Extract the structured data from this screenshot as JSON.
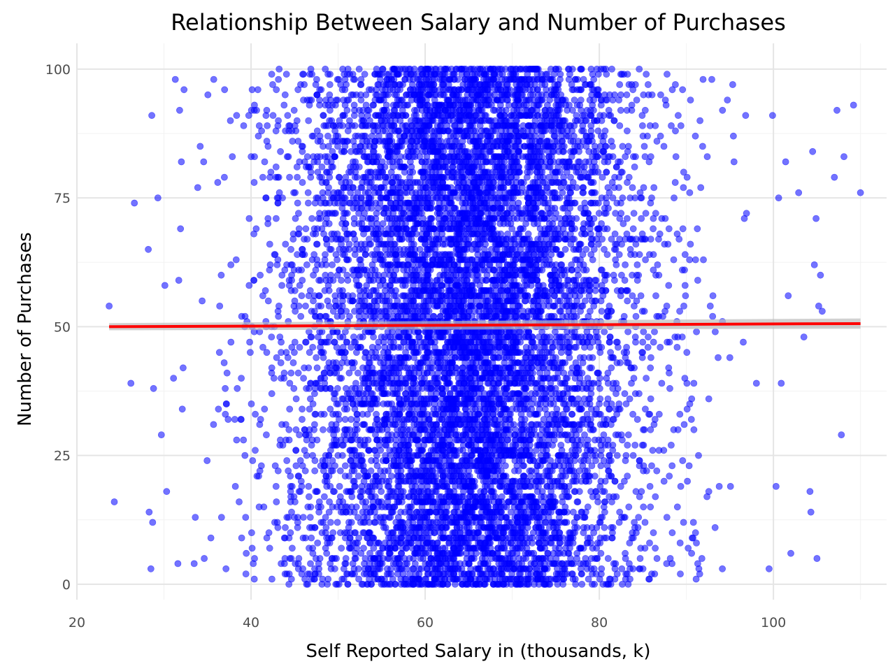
{
  "chart_data": {
    "type": "scatter",
    "title": "Relationship Between Salary and Number of Purchases",
    "xlabel": "Self Reported Salary in (thousands, k)",
    "ylabel": "Number of Purchases",
    "xlim": [
      20,
      113
    ],
    "ylim": [
      -3,
      105
    ],
    "x_ticks": [
      20,
      40,
      60,
      80,
      100
    ],
    "y_ticks": [
      0,
      25,
      50,
      75,
      100
    ],
    "x_tick_labels": [
      "20",
      "40",
      "60",
      "80",
      "100"
    ],
    "y_tick_labels": [
      "0",
      "25",
      "50",
      "75",
      "100"
    ],
    "grid": true,
    "legend": "none",
    "series": [
      {
        "kind": "points",
        "color": "#0000ff",
        "opacity": 0.55,
        "x_distribution": {
          "type": "normal",
          "mean": 65,
          "sd": 10
        },
        "y_distribution": {
          "type": "uniform_integer",
          "min": 0,
          "max": 100
        },
        "approx_count": 10000,
        "outliers": [
          [
            23.7,
            54
          ],
          [
            24.3,
            16
          ],
          [
            26.2,
            39
          ],
          [
            26.6,
            74
          ],
          [
            28.2,
            65
          ],
          [
            28.3,
            14
          ],
          [
            28.5,
            3
          ],
          [
            28.6,
            91
          ],
          [
            28.7,
            12
          ],
          [
            28.8,
            38
          ],
          [
            29.3,
            75
          ],
          [
            29.7,
            29
          ],
          [
            30.1,
            58
          ],
          [
            30.3,
            18
          ],
          [
            31.1,
            40
          ],
          [
            31.3,
            98
          ],
          [
            31.6,
            4
          ],
          [
            31.7,
            59
          ],
          [
            31.8,
            92
          ],
          [
            31.9,
            69
          ],
          [
            32.0,
            82
          ],
          [
            32.1,
            34
          ],
          [
            32.2,
            42
          ],
          [
            32.3,
            96
          ],
          [
            104.2,
            18
          ],
          [
            104.3,
            14
          ],
          [
            104.5,
            84
          ],
          [
            104.7,
            62
          ],
          [
            104.9,
            71
          ],
          [
            105.0,
            5
          ],
          [
            105.2,
            54
          ],
          [
            105.4,
            60
          ],
          [
            105.6,
            53
          ],
          [
            107.0,
            79
          ],
          [
            107.3,
            92
          ],
          [
            107.8,
            29
          ],
          [
            108.1,
            83
          ],
          [
            109.2,
            93
          ],
          [
            110.0,
            76
          ],
          [
            103.5,
            48
          ],
          [
            102.9,
            76
          ],
          [
            102.0,
            6
          ],
          [
            101.7,
            56
          ],
          [
            101.4,
            82
          ],
          [
            100.9,
            39
          ],
          [
            100.6,
            75
          ],
          [
            100.3,
            19
          ],
          [
            99.9,
            91
          ],
          [
            99.5,
            3
          ]
        ]
      }
    ],
    "trend_line": {
      "color": "#ff0000",
      "ribbon_color": "#bdbdbd",
      "x": [
        23.7,
        110.0
      ],
      "y": [
        50.0,
        50.6
      ],
      "ribbon_y_low": [
        49.3,
        49.6
      ],
      "ribbon_y_high": [
        50.7,
        51.6
      ]
    }
  }
}
